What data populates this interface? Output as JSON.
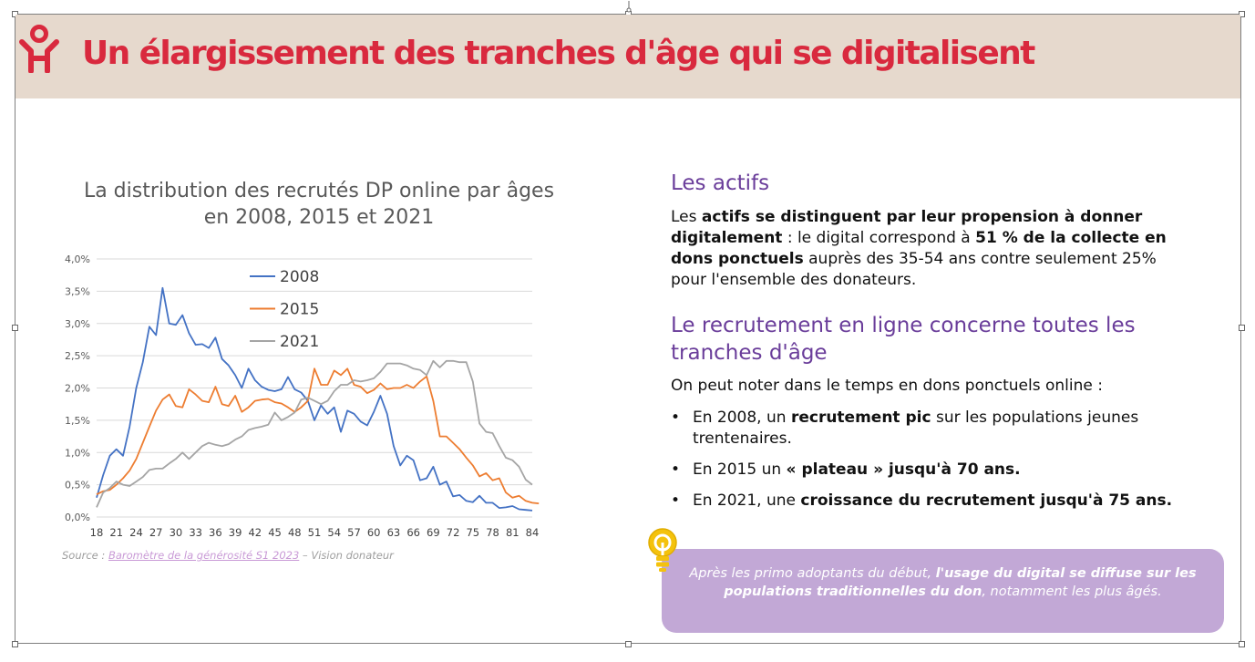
{
  "header": {
    "title": "Un élargissement des tranches d'âge qui se digitalisent",
    "logo_icon": "person-heart-icon",
    "accent_color": "#d9293e",
    "band_color": "#e6d9cd"
  },
  "chart": {
    "title_line1": "La distribution des recrutés DP online par âges",
    "title_line2": "en 2008, 2015 et 2021"
  },
  "chart_data": {
    "type": "line",
    "title": "La distribution des recrutés DP online par âges en 2008, 2015 et 2021",
    "xlabel": "",
    "ylabel": "",
    "grid": true,
    "legend_position": "top-center",
    "ylim": [
      0,
      4.0
    ],
    "y_ticks": [
      0,
      0.5,
      1.0,
      1.5,
      2.0,
      2.5,
      3.0,
      3.5,
      4.0
    ],
    "y_tick_labels": [
      "0,0%",
      "0,5%",
      "1,0%",
      "1,5%",
      "2,0%",
      "2,5%",
      "3,0%",
      "3,5%",
      "4,0%"
    ],
    "x_tick_labels": [
      "18",
      "21",
      "24",
      "27",
      "30",
      "33",
      "36",
      "39",
      "42",
      "45",
      "48",
      "51",
      "54",
      "57",
      "60",
      "63",
      "66",
      "69",
      "72",
      "75",
      "78",
      "81",
      "84"
    ],
    "x_start": 18,
    "x_end": 84,
    "series": [
      {
        "name": "2008",
        "color": "#4472c4",
        "values": [
          0.3,
          0.65,
          0.95,
          1.05,
          0.95,
          1.4,
          2.0,
          2.4,
          2.95,
          2.82,
          3.55,
          3.0,
          2.98,
          3.13,
          2.85,
          2.67,
          2.68,
          2.62,
          2.78,
          2.45,
          2.35,
          2.2,
          2.0,
          2.3,
          2.12,
          2.02,
          1.97,
          1.95,
          1.98,
          2.17,
          1.98,
          1.93,
          1.8,
          1.5,
          1.73,
          1.6,
          1.7,
          1.32,
          1.65,
          1.6,
          1.48,
          1.42,
          1.63,
          1.88,
          1.6,
          1.1,
          0.8,
          0.95,
          0.88,
          0.57,
          0.6,
          0.78,
          0.5,
          0.55,
          0.32,
          0.34,
          0.25,
          0.23,
          0.33,
          0.22,
          0.22,
          0.14,
          0.15,
          0.17,
          0.12,
          0.11,
          0.1
        ]
      },
      {
        "name": "2015",
        "color": "#ed7d31",
        "values": [
          0.35,
          0.4,
          0.42,
          0.5,
          0.6,
          0.72,
          0.9,
          1.15,
          1.4,
          1.65,
          1.82,
          1.9,
          1.72,
          1.7,
          1.98,
          1.9,
          1.8,
          1.78,
          2.02,
          1.75,
          1.72,
          1.88,
          1.63,
          1.7,
          1.8,
          1.82,
          1.83,
          1.78,
          1.76,
          1.7,
          1.63,
          1.7,
          1.8,
          2.3,
          2.05,
          2.05,
          2.27,
          2.2,
          2.3,
          2.05,
          2.02,
          1.92,
          1.97,
          2.07,
          1.98,
          2.0,
          2.0,
          2.05,
          2.0,
          2.1,
          2.18,
          1.8,
          1.25,
          1.25,
          1.15,
          1.05,
          0.92,
          0.8,
          0.63,
          0.68,
          0.57,
          0.6,
          0.38,
          0.3,
          0.33,
          0.25,
          0.22,
          0.21
        ]
      },
      {
        "name": "2021",
        "color": "#a5a5a5",
        "values": [
          0.15,
          0.38,
          0.45,
          0.55,
          0.5,
          0.48,
          0.55,
          0.62,
          0.73,
          0.75,
          0.75,
          0.83,
          0.9,
          1.0,
          0.9,
          1.0,
          1.1,
          1.15,
          1.12,
          1.1,
          1.13,
          1.2,
          1.25,
          1.35,
          1.38,
          1.4,
          1.43,
          1.62,
          1.5,
          1.55,
          1.62,
          1.82,
          1.85,
          1.8,
          1.75,
          1.8,
          1.95,
          2.05,
          2.05,
          2.12,
          2.1,
          2.12,
          2.15,
          2.25,
          2.38,
          2.38,
          2.38,
          2.35,
          2.3,
          2.28,
          2.2,
          2.42,
          2.32,
          2.42,
          2.42,
          2.4,
          2.4,
          2.1,
          1.45,
          1.32,
          1.3,
          1.1,
          0.92,
          0.88,
          0.78,
          0.58,
          0.5
        ]
      }
    ]
  },
  "source": {
    "prefix": "Source : ",
    "link_text": "Baromètre de la générosité S1 2023",
    "suffix": " – Vision donateur"
  },
  "section1": {
    "heading": "Les actifs",
    "p1_a": "Les ",
    "p1_b": "actifs se distinguent par leur propension à donner digitalement",
    "p1_c": " : le digital correspond à ",
    "p1_d": "51 % de la collecte en dons ponctuels",
    "p1_e": "  auprès des 35-54 ans contre seulement 25% pour l'ensemble des donateurs."
  },
  "section2": {
    "heading": "Le recrutement en ligne concerne toutes les tranches d'âge",
    "intro": "On peut noter dans le temps en dons ponctuels online :",
    "bullets": [
      {
        "a": "En 2008, un ",
        "b": "recrutement pic",
        "c": " sur les populations jeunes trentenaires."
      },
      {
        "a": "En 2015 un ",
        "b": "« plateau » jusqu'à 70 ans.",
        "c": ""
      },
      {
        "a": "En 2021, une ",
        "b": "croissance du recrutement jusqu'à 75 ans.",
        "c": ""
      }
    ]
  },
  "callout": {
    "icon": "lightbulb-icon",
    "t1": "Après les primo adoptants du début, ",
    "t2": "l'usage du digital se diffuse sur les populations traditionnelles du don",
    "t3": ", notamment les plus âgés.",
    "bg_color": "#c2a8d6"
  }
}
